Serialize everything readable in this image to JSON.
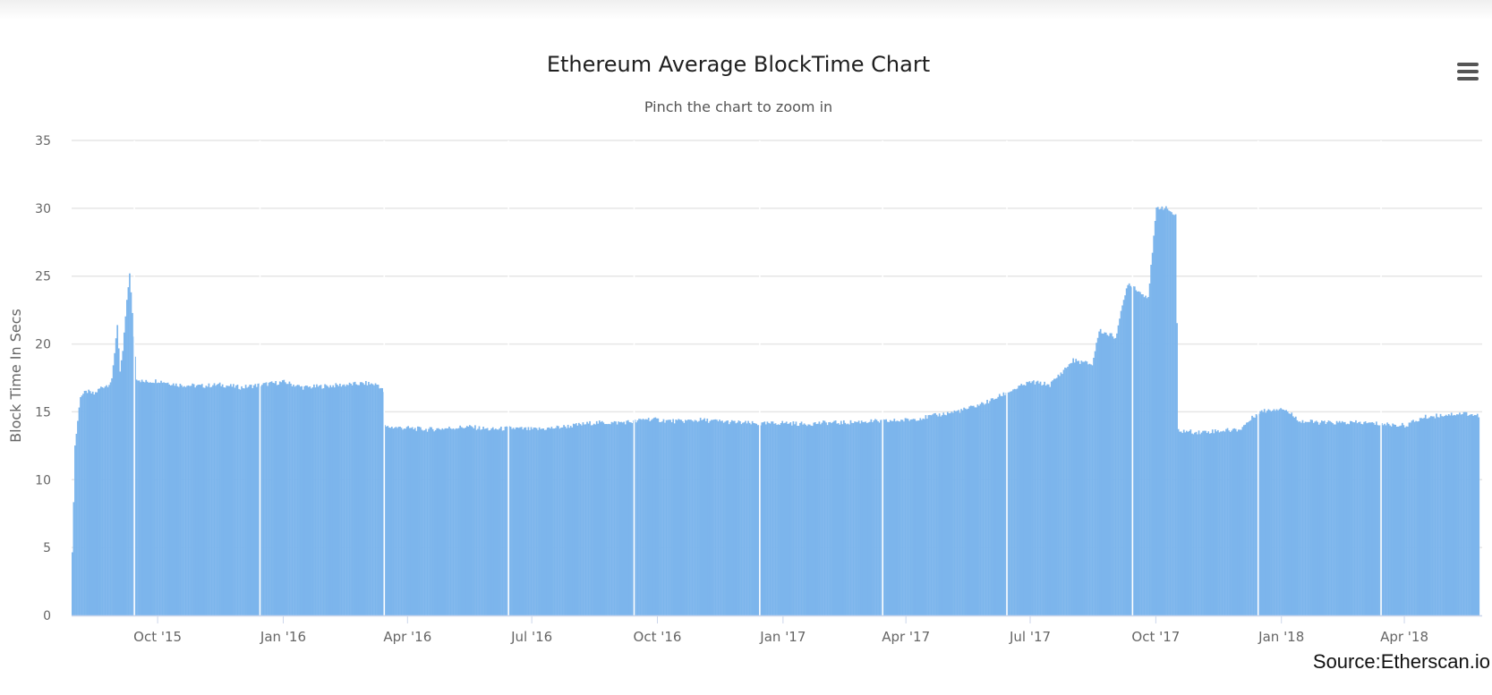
{
  "header": {
    "title": "Ethereum Average BlockTime Chart",
    "subtitle": "Pinch the chart to zoom in",
    "menu_icon": "hamburger-menu-icon"
  },
  "source": "Source:Etherscan.io",
  "colors": {
    "bar": "#7cb5ec",
    "gridline": "#e6e6e6",
    "axis_text": "#666666"
  },
  "chart_data": {
    "type": "bar",
    "title": "Ethereum Average BlockTime Chart",
    "subtitle": "Pinch the chart to zoom in",
    "xlabel": "",
    "ylabel": "Block Time In Secs",
    "ylim": [
      0,
      35
    ],
    "yticks": [
      0,
      5,
      10,
      15,
      20,
      25,
      30,
      35
    ],
    "xlim": [
      "2015-07-30",
      "2018-05-28"
    ],
    "xticks": [
      {
        "date": "2015-10-01",
        "label": "Oct '15"
      },
      {
        "date": "2016-01-01",
        "label": "Jan '16"
      },
      {
        "date": "2016-04-01",
        "label": "Apr '16"
      },
      {
        "date": "2016-07-01",
        "label": "Jul '16"
      },
      {
        "date": "2016-10-01",
        "label": "Oct '16"
      },
      {
        "date": "2017-01-01",
        "label": "Jan '17"
      },
      {
        "date": "2017-04-01",
        "label": "Apr '17"
      },
      {
        "date": "2017-07-01",
        "label": "Jul '17"
      },
      {
        "date": "2017-10-01",
        "label": "Oct '17"
      },
      {
        "date": "2018-01-01",
        "label": "Jan '18"
      },
      {
        "date": "2018-04-01",
        "label": "Apr '18"
      }
    ],
    "grid": true,
    "legend": "none",
    "series": [
      {
        "x": [
          "2015-07-30",
          "2015-08-01",
          "2015-08-05",
          "2015-08-10",
          "2015-08-15",
          "2015-08-20",
          "2015-08-25",
          "2015-08-28",
          "2015-09-01",
          "2015-09-03",
          "2015-09-05",
          "2015-09-07",
          "2015-09-10",
          "2015-09-15",
          "2015-09-20",
          "2015-10-01",
          "2015-10-15",
          "2015-11-01",
          "2015-11-15",
          "2015-12-01",
          "2015-12-15",
          "2016-01-01",
          "2016-01-15",
          "2016-02-01",
          "2016-02-15",
          "2016-03-01",
          "2016-03-10",
          "2016-03-14",
          "2016-03-15",
          "2016-04-01",
          "2016-04-15",
          "2016-05-01",
          "2016-05-15",
          "2016-06-01",
          "2016-06-15",
          "2016-07-01",
          "2016-07-15",
          "2016-08-01",
          "2016-08-15",
          "2016-09-01",
          "2016-09-15",
          "2016-09-22",
          "2016-10-01",
          "2016-10-15",
          "2016-11-01",
          "2016-11-15",
          "2016-12-01",
          "2016-12-15",
          "2017-01-01",
          "2017-01-15",
          "2017-02-01",
          "2017-02-15",
          "2017-03-01",
          "2017-03-15",
          "2017-04-01",
          "2017-04-15",
          "2017-05-01",
          "2017-05-15",
          "2017-06-01",
          "2017-06-15",
          "2017-07-01",
          "2017-07-15",
          "2017-08-01",
          "2017-08-15",
          "2017-08-20",
          "2017-09-01",
          "2017-09-10",
          "2017-09-15",
          "2017-09-20",
          "2017-09-25",
          "2017-10-01",
          "2017-10-05",
          "2017-10-10",
          "2017-10-15",
          "2017-10-17",
          "2017-11-01",
          "2017-11-15",
          "2017-12-01",
          "2017-12-15",
          "2018-01-01",
          "2018-01-15",
          "2018-02-01",
          "2018-02-15",
          "2018-03-01",
          "2018-03-15",
          "2018-04-01",
          "2018-04-15",
          "2018-05-01",
          "2018-05-15",
          "2018-05-25"
        ],
        "y": [
          4.5,
          12.5,
          16.2,
          16.5,
          16.3,
          16.8,
          17.0,
          17.3,
          21.5,
          17.8,
          19.5,
          22.0,
          25.3,
          17.5,
          17.2,
          17.3,
          17.0,
          16.9,
          17.0,
          16.8,
          17.0,
          17.2,
          16.8,
          16.9,
          17.0,
          17.1,
          17.0,
          16.5,
          13.9,
          13.8,
          13.7,
          13.8,
          13.9,
          13.7,
          13.8,
          13.7,
          13.8,
          14.0,
          14.2,
          14.2,
          14.3,
          14.5,
          14.4,
          14.3,
          14.4,
          14.3,
          14.2,
          14.1,
          14.2,
          14.1,
          14.2,
          14.2,
          14.3,
          14.3,
          14.4,
          14.6,
          14.9,
          15.2,
          15.8,
          16.5,
          17.2,
          17.0,
          18.8,
          18.5,
          21.0,
          20.5,
          24.5,
          24.2,
          23.7,
          23.5,
          30.0,
          30.1,
          29.9,
          29.4,
          13.6,
          13.5,
          13.6,
          13.7,
          15.0,
          15.3,
          14.3,
          14.2,
          14.2,
          14.2,
          14.1,
          14.0,
          14.6,
          14.8,
          14.9,
          14.7
        ]
      }
    ]
  }
}
